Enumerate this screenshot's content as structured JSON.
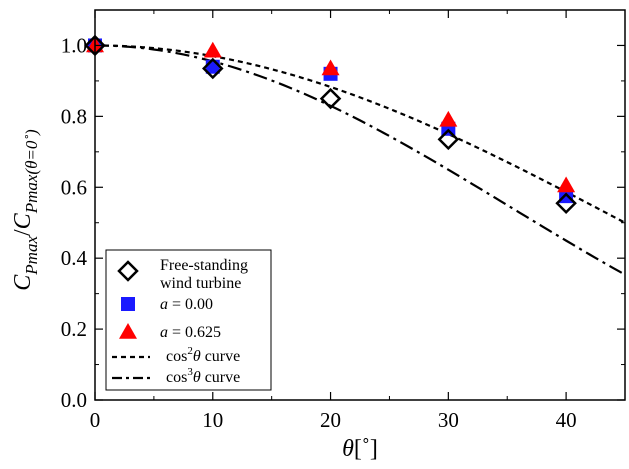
{
  "chart_data": {
    "type": "scatter",
    "xlabel": "θ[˚]",
    "ylabel": "C_Pmax / C_Pmax(θ=0˚)",
    "ylabel_parts": {
      "c1": "C",
      "s1": "Pmax",
      "slash": "/",
      "c2": "C",
      "s2": "Pmax(θ=0˚)"
    },
    "xlabel_parts": {
      "theta": "θ",
      "unit": "[˚]"
    },
    "xlim": [
      0,
      45
    ],
    "ylim": [
      0,
      1.1
    ],
    "xticks": [
      0,
      10,
      20,
      30,
      40
    ],
    "xtick_labels": [
      "0",
      "10",
      "20",
      "30",
      "40"
    ],
    "yticks": [
      0,
      0.2,
      0.4,
      0.6,
      0.8,
      1.0
    ],
    "ytick_labels": [
      "0.0",
      "0.2",
      "0.4",
      "0.6",
      "0.8",
      "1.0"
    ],
    "grid": false,
    "legend_position": "bottom-left",
    "series": [
      {
        "name": "Free-standing wind turbine",
        "legend_lines": [
          "Free-standing",
          "wind turbine"
        ],
        "marker": "diamond-open",
        "color": "#000000",
        "x": [
          0,
          10,
          20,
          30,
          40
        ],
        "y": [
          1.0,
          0.935,
          0.85,
          0.735,
          0.555
        ]
      },
      {
        "name": "a = 0.00",
        "legend_parts": {
          "var": "a",
          "rest": " = 0.00"
        },
        "marker": "square",
        "color": "#1a1aff",
        "x": [
          0,
          10,
          20,
          30,
          40
        ],
        "y": [
          1.0,
          0.94,
          0.92,
          0.765,
          0.575
        ]
      },
      {
        "name": "a = 0.625",
        "legend_parts": {
          "var": "a",
          "rest": " = 0.625"
        },
        "marker": "triangle",
        "color": "#ff0000",
        "x": [
          0,
          10,
          20,
          30,
          40
        ],
        "y": [
          1.0,
          0.985,
          0.935,
          0.79,
          0.605
        ]
      },
      {
        "name": "cos²θ curve",
        "legend_parts": {
          "pre": "cos",
          "sup": "2",
          "var": "θ",
          "post": " curve"
        },
        "type": "line",
        "function": "cos^2",
        "dash": "short-dash",
        "color": "#000000"
      },
      {
        "name": "cos³θ curve",
        "legend_parts": {
          "pre": "cos",
          "sup": "3",
          "var": "θ",
          "post": " curve"
        },
        "type": "line",
        "function": "cos^3",
        "dash": "dash-dot",
        "color": "#000000"
      }
    ]
  }
}
